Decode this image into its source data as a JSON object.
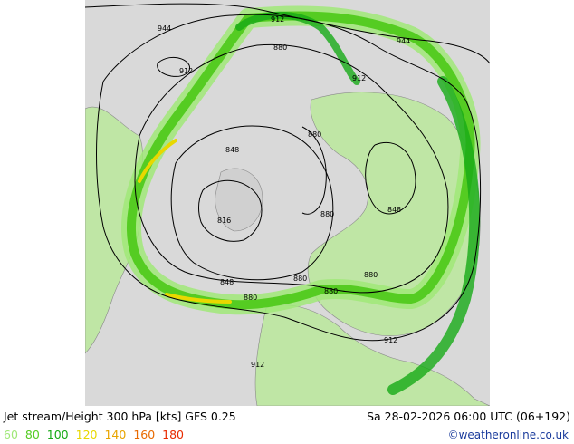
{
  "header": {
    "title": "Jet stream/Height 300 hPa [kts] GFS 0.25",
    "timestamp": "Sa 28-02-2026 06:00 UTC (06+192)"
  },
  "legend": {
    "items": [
      {
        "label": "60",
        "color": "#a0e878"
      },
      {
        "label": "80",
        "color": "#55cc22"
      },
      {
        "label": "100",
        "color": "#16aa16"
      },
      {
        "label": "120",
        "color": "#e8d800"
      },
      {
        "label": "140",
        "color": "#e8a400"
      },
      {
        "label": "160",
        "color": "#e86a00"
      },
      {
        "label": "180",
        "color": "#e82a00"
      }
    ]
  },
  "credit": "©weatheronline.co.uk",
  "map": {
    "background_color": "#d9d9d9",
    "land_color": "#c8e8b0",
    "contour_labels": [
      "944",
      "912",
      "880",
      "944",
      "912",
      "912",
      "880",
      "848",
      "880",
      "848",
      "816",
      "880",
      "848",
      "880",
      "880",
      "880",
      "912",
      "912"
    ]
  }
}
